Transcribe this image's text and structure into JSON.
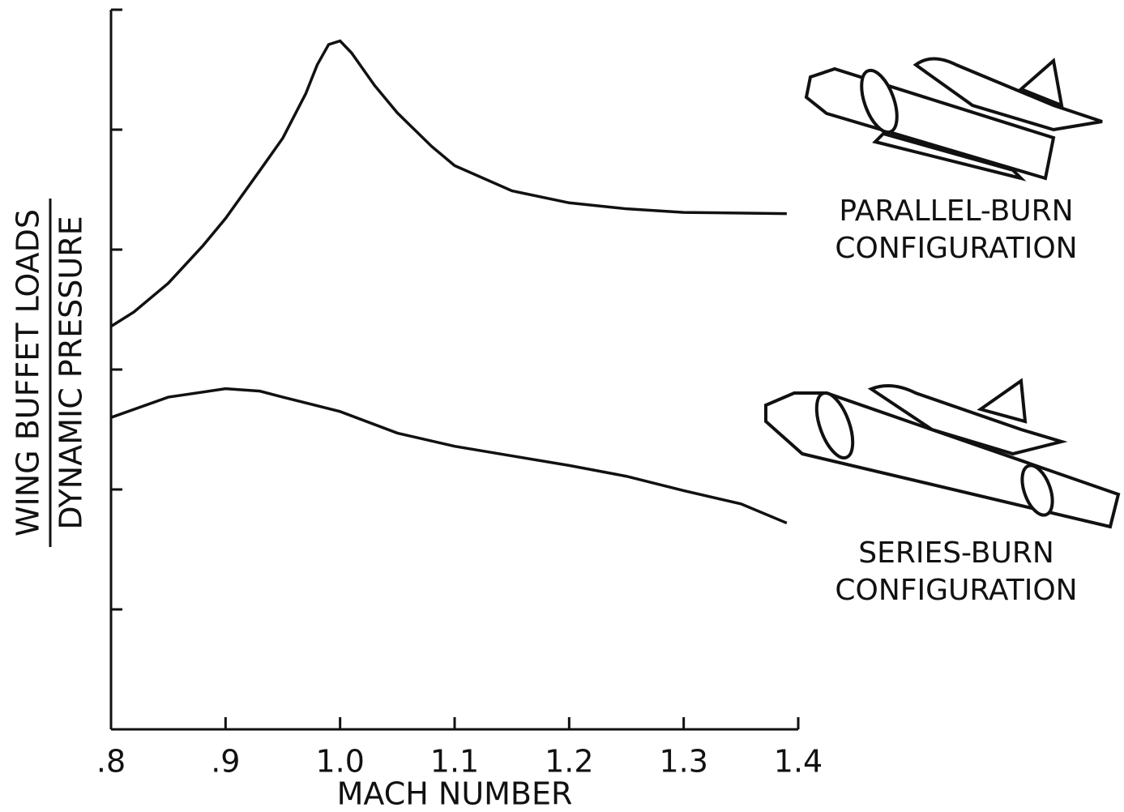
{
  "chart_data": {
    "type": "line",
    "xlabel": "MACH NUMBER",
    "ylabel": {
      "numerator": "WING BUFFET LOADS",
      "denominator": "DYNAMIC PRESSURE"
    },
    "xlim": [
      0.8,
      1.4
    ],
    "ylim": [
      0,
      6
    ],
    "xticks": [
      {
        "value": 0.8,
        "label": ".8"
      },
      {
        "value": 0.9,
        "label": ".9"
      },
      {
        "value": 1.0,
        "label": "1.0"
      },
      1.1,
      1.2,
      1.3,
      1.4
    ],
    "yticks": [
      1,
      2,
      3,
      4,
      5,
      6
    ],
    "series": [
      {
        "name": "PARALLEL-BURN CONFIGURATION",
        "color": "#111111",
        "x": [
          0.8,
          0.82,
          0.85,
          0.88,
          0.9,
          0.93,
          0.95,
          0.97,
          0.98,
          0.99,
          1.0,
          1.01,
          1.03,
          1.05,
          1.08,
          1.1,
          1.15,
          1.2,
          1.25,
          1.3,
          1.39
        ],
        "values": [
          3.36,
          3.48,
          3.72,
          4.03,
          4.26,
          4.66,
          4.93,
          5.3,
          5.54,
          5.71,
          5.74,
          5.64,
          5.37,
          5.14,
          4.86,
          4.7,
          4.49,
          4.39,
          4.34,
          4.31,
          4.3
        ]
      },
      {
        "name": "SERIES-BURN CONFIGURATION",
        "color": "#111111",
        "x": [
          0.8,
          0.85,
          0.9,
          0.93,
          0.95,
          1.0,
          1.05,
          1.1,
          1.15,
          1.2,
          1.25,
          1.3,
          1.35,
          1.39
        ],
        "values": [
          2.6,
          2.77,
          2.84,
          2.82,
          2.77,
          2.65,
          2.47,
          2.36,
          2.28,
          2.2,
          2.11,
          1.99,
          1.88,
          1.72
        ]
      }
    ]
  }
}
